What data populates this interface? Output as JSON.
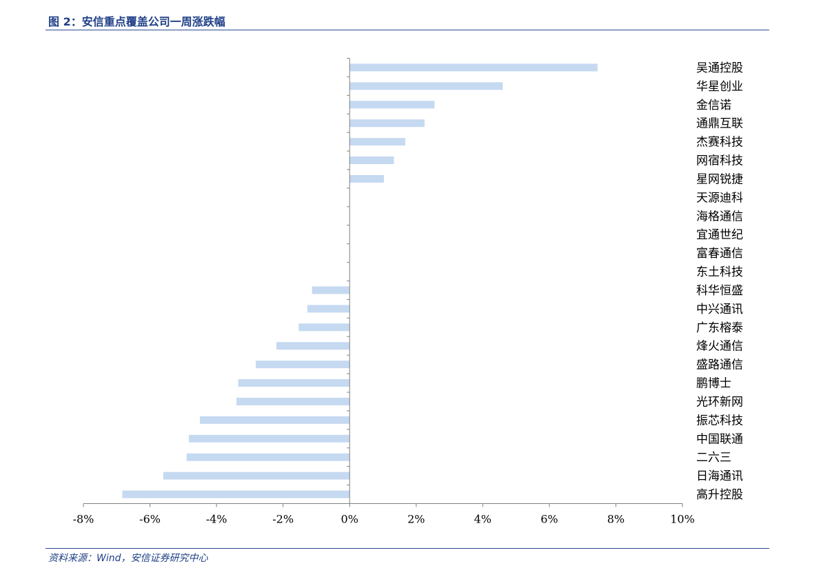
{
  "header": {
    "title": "图 2：安信重点覆盖公司一周涨跌幅"
  },
  "footer": {
    "source": "资料来源：Wind，安信证券研究中心"
  },
  "colors": {
    "bar": "#c5d9f1",
    "header_text": "#1f3f86",
    "rule": "#2a4a8f",
    "axis": "#7f7f7f"
  },
  "chart_data": {
    "type": "bar",
    "orientation": "horizontal",
    "categories": [
      "吴通控股",
      "华星创业",
      "金信诺",
      "通鼎互联",
      "杰赛科技",
      "网宿科技",
      "星网锐捷",
      "天源迪科",
      "海格通信",
      "宜通世纪",
      "富春通信",
      "东土科技",
      "科华恒盛",
      "中兴通讯",
      "广东榕泰",
      "烽火通信",
      "盛路通信",
      "鹏博士",
      "光环新网",
      "振芯科技",
      "中国联通",
      "二六三",
      "日海通讯",
      "高升控股"
    ],
    "values": [
      7.45,
      4.6,
      2.55,
      2.25,
      1.67,
      1.33,
      1.03,
      0,
      0,
      0,
      0,
      0,
      -1.13,
      -1.27,
      -1.53,
      -2.2,
      -2.82,
      -3.35,
      -3.4,
      -4.5,
      -4.83,
      -4.9,
      -5.6,
      -6.83
    ],
    "xlim": [
      -8,
      10
    ],
    "xticks": [
      "-8%",
      "-6%",
      "-4%",
      "-2%",
      "0%",
      "2%",
      "4%",
      "6%",
      "8%",
      "10%"
    ],
    "xlabel": "",
    "ylabel": "",
    "grid": false,
    "legend": "none"
  }
}
